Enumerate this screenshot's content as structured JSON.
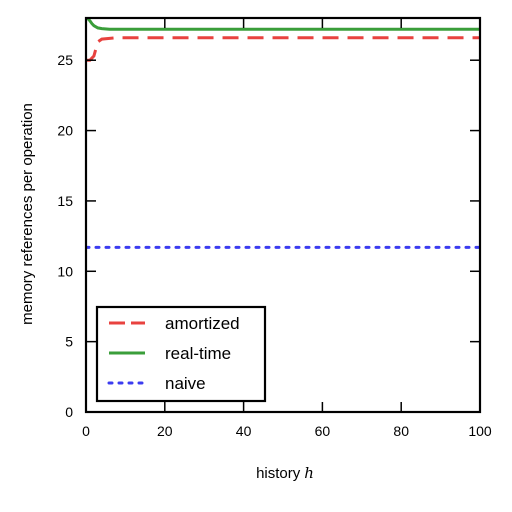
{
  "chart_data": {
    "type": "line",
    "xlabel": "history",
    "xlabel_var": "h",
    "ylabel": "memory references per operation",
    "xlim": [
      0,
      100
    ],
    "ylim": [
      0,
      28
    ],
    "xticks": [
      "0",
      "20",
      "40",
      "60",
      "80",
      "100"
    ],
    "yticks": [
      "0",
      "5",
      "10",
      "15",
      "20",
      "25"
    ],
    "grid": false,
    "legend_position": "lower-left",
    "series": [
      {
        "name": "amortized",
        "color": "#e8423f",
        "style": "dashed",
        "x": [
          0,
          0.5,
          1,
          2,
          3,
          4,
          6,
          8,
          10,
          15,
          20,
          30,
          40,
          50,
          60,
          70,
          80,
          90,
          100
        ],
        "y": [
          25.0,
          25.0,
          25.0,
          25.3,
          26.3,
          26.5,
          26.55,
          26.6,
          26.6,
          26.6,
          26.6,
          26.6,
          26.6,
          26.6,
          26.6,
          26.6,
          26.6,
          26.6,
          26.6
        ]
      },
      {
        "name": "real-time",
        "color": "#3a9e3a",
        "style": "solid",
        "x": [
          0,
          0.5,
          1,
          1.5,
          2,
          3,
          4,
          6,
          8,
          10,
          20,
          40,
          60,
          80,
          100
        ],
        "y": [
          28.0,
          27.95,
          27.8,
          27.6,
          27.45,
          27.3,
          27.25,
          27.2,
          27.2,
          27.2,
          27.2,
          27.2,
          27.2,
          27.2,
          27.2
        ]
      },
      {
        "name": "naive",
        "color": "#3c3cf0",
        "style": "dotted",
        "x": [
          0,
          20,
          40,
          60,
          80,
          100
        ],
        "y": [
          11.7,
          11.7,
          11.7,
          11.7,
          11.7,
          11.7
        ]
      }
    ]
  }
}
